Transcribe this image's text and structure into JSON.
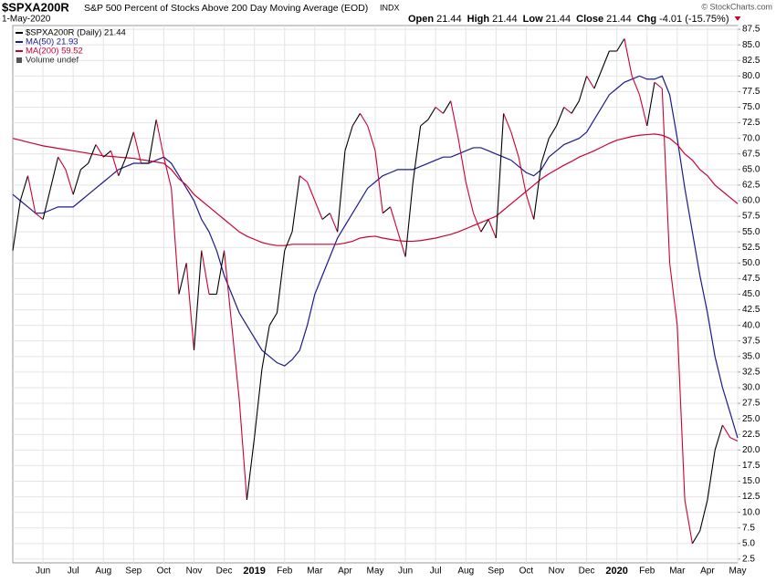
{
  "header": {
    "symbol": "$SPXA200R",
    "description": "S&P 500 Percent of Stocks Above 200 Day Moving Average (EOD)",
    "exchange": "INDX",
    "date": "1-May-2020",
    "copyright": "© StockCharts.com",
    "quote": [
      {
        "label": "Open",
        "value": "21.44"
      },
      {
        "label": "High",
        "value": "21.44"
      },
      {
        "label": "Low",
        "value": "21.44"
      },
      {
        "label": "Close",
        "value": "21.44"
      },
      {
        "label": "Chg",
        "value": "-4.01 (-15.75%)"
      }
    ]
  },
  "chart_data": {
    "type": "line",
    "grid": true,
    "volume_note": "Volume undef",
    "categories": [
      null,
      null,
      null,
      null,
      "Jun",
      null,
      null,
      null,
      "Jul",
      null,
      null,
      null,
      "Aug",
      null,
      null,
      null,
      "Sep",
      null,
      null,
      null,
      "Oct",
      null,
      null,
      null,
      "Nov",
      null,
      null,
      null,
      "Dec",
      null,
      null,
      null,
      "2019",
      null,
      null,
      null,
      "Feb",
      null,
      null,
      null,
      "Mar",
      null,
      null,
      null,
      "Apr",
      null,
      null,
      null,
      "May",
      null,
      null,
      null,
      "Jun",
      null,
      null,
      null,
      "Jul",
      null,
      null,
      null,
      "Aug",
      null,
      null,
      null,
      "Sep",
      null,
      null,
      null,
      "Oct",
      null,
      null,
      null,
      "Nov",
      null,
      null,
      null,
      "Dec",
      null,
      null,
      null,
      "2020",
      null,
      null,
      null,
      "Feb",
      null,
      null,
      null,
      "Mar",
      null,
      null,
      null,
      "Apr",
      null,
      null,
      null,
      "May"
    ],
    "ylim": [
      1.9,
      88.1
    ],
    "yticks": [
      2.5,
      {
        "value": 5,
        "label": "5.0"
      },
      7.5,
      {
        "value": 10,
        "label": "10.0"
      },
      12.5,
      {
        "value": 15,
        "label": "15.0"
      },
      17.5,
      {
        "value": 20,
        "label": "20.0"
      },
      22.5,
      {
        "value": 25,
        "label": "25.0"
      },
      27.5,
      {
        "value": 30,
        "label": "30.0"
      },
      32.5,
      {
        "value": 35,
        "label": "35.0"
      },
      37.5,
      {
        "value": 40,
        "label": "40.0"
      },
      42.5,
      {
        "value": 45,
        "label": "45.0"
      },
      47.5,
      {
        "value": 50,
        "label": "50.0"
      },
      52.5,
      {
        "value": 55,
        "label": "55.0"
      },
      57.5,
      {
        "value": 60,
        "label": "60.0"
      },
      62.5,
      {
        "value": 65,
        "label": "65.0"
      },
      67.5,
      {
        "value": 70,
        "label": "70.0"
      },
      72.5,
      {
        "value": 75,
        "label": "75.0"
      },
      77.5,
      {
        "value": 80,
        "label": "80.0"
      },
      82.5,
      {
        "value": 85,
        "label": "85.0"
      },
      87.5
    ],
    "series": [
      {
        "name": "$SPXA200R (Daily) 21.44",
        "color": "#000000",
        "down_color": "#cc0033",
        "values": [
          52,
          60,
          64,
          58,
          57,
          62,
          67,
          65,
          61,
          65,
          66,
          69,
          67,
          68,
          64,
          67,
          71,
          66,
          66,
          73,
          67,
          62,
          45,
          50,
          36,
          52,
          45,
          45,
          52,
          40,
          28,
          12,
          22,
          33,
          40,
          42,
          52,
          55,
          64,
          63,
          60,
          57,
          58,
          55,
          68,
          72,
          74,
          72,
          68,
          58,
          59,
          55,
          51,
          63,
          72,
          73,
          75,
          74,
          76,
          70,
          63,
          58,
          55,
          57,
          54,
          74,
          71,
          67,
          61,
          57,
          66,
          70,
          72,
          75,
          74,
          76,
          80,
          78,
          81,
          84,
          84,
          86,
          80,
          77,
          72,
          79,
          78,
          50,
          40,
          12,
          5,
          7,
          12,
          20,
          24,
          22,
          21.44
        ]
      },
      {
        "name": "MA(50) 21.93",
        "color": "#1a1a8c",
        "values": [
          61,
          60,
          59,
          58,
          58,
          58.5,
          59,
          59,
          59,
          60,
          61,
          62,
          63,
          64,
          65,
          65.5,
          66,
          66,
          66,
          66.5,
          67,
          66,
          64,
          62,
          60,
          57,
          55,
          52,
          48,
          45,
          42,
          40,
          38,
          36,
          35,
          34,
          33.5,
          34.5,
          36,
          40,
          45,
          48,
          51,
          54,
          56,
          58,
          60,
          62,
          63,
          64,
          64.5,
          65,
          65,
          65,
          65.5,
          66,
          66.5,
          67,
          67,
          67.5,
          68,
          68.5,
          68.5,
          68,
          67.5,
          67,
          66.5,
          65.5,
          64.5,
          64,
          65,
          67,
          68,
          69,
          69.5,
          70,
          71,
          73,
          75,
          77,
          78,
          79,
          79.5,
          80,
          79.5,
          79.5,
          80,
          77,
          70,
          62,
          55,
          48,
          42,
          35,
          30,
          26,
          21.93
        ]
      },
      {
        "name": "MA(200) 59.52",
        "color": "#cc0033",
        "values": [
          70,
          69.7,
          69.4,
          69.1,
          68.8,
          68.6,
          68.4,
          68.2,
          68,
          67.8,
          67.6,
          67.4,
          67.2,
          67.1,
          67,
          66.9,
          66.8,
          66.6,
          66.4,
          66.2,
          66,
          65,
          63.5,
          62.5,
          61,
          60,
          59,
          58,
          57,
          56,
          55,
          54.3,
          53.8,
          53.3,
          53,
          52.8,
          52.8,
          53,
          53,
          53,
          53,
          53,
          53,
          53,
          53.2,
          53.5,
          54,
          54.2,
          54.3,
          54,
          53.8,
          53.6,
          53.5,
          53.5,
          53.6,
          53.8,
          54,
          54.3,
          54.6,
          55,
          55.5,
          56,
          56.5,
          57,
          57.5,
          58.5,
          59.5,
          60.5,
          61.5,
          62.5,
          63.5,
          64.3,
          65,
          65.7,
          66.3,
          67,
          67.5,
          68,
          68.6,
          69.2,
          69.7,
          70,
          70.3,
          70.5,
          70.6,
          70.7,
          70.5,
          70,
          69,
          67.5,
          66.5,
          65,
          64,
          62.5,
          61.5,
          60.5,
          59.52
        ]
      }
    ]
  }
}
